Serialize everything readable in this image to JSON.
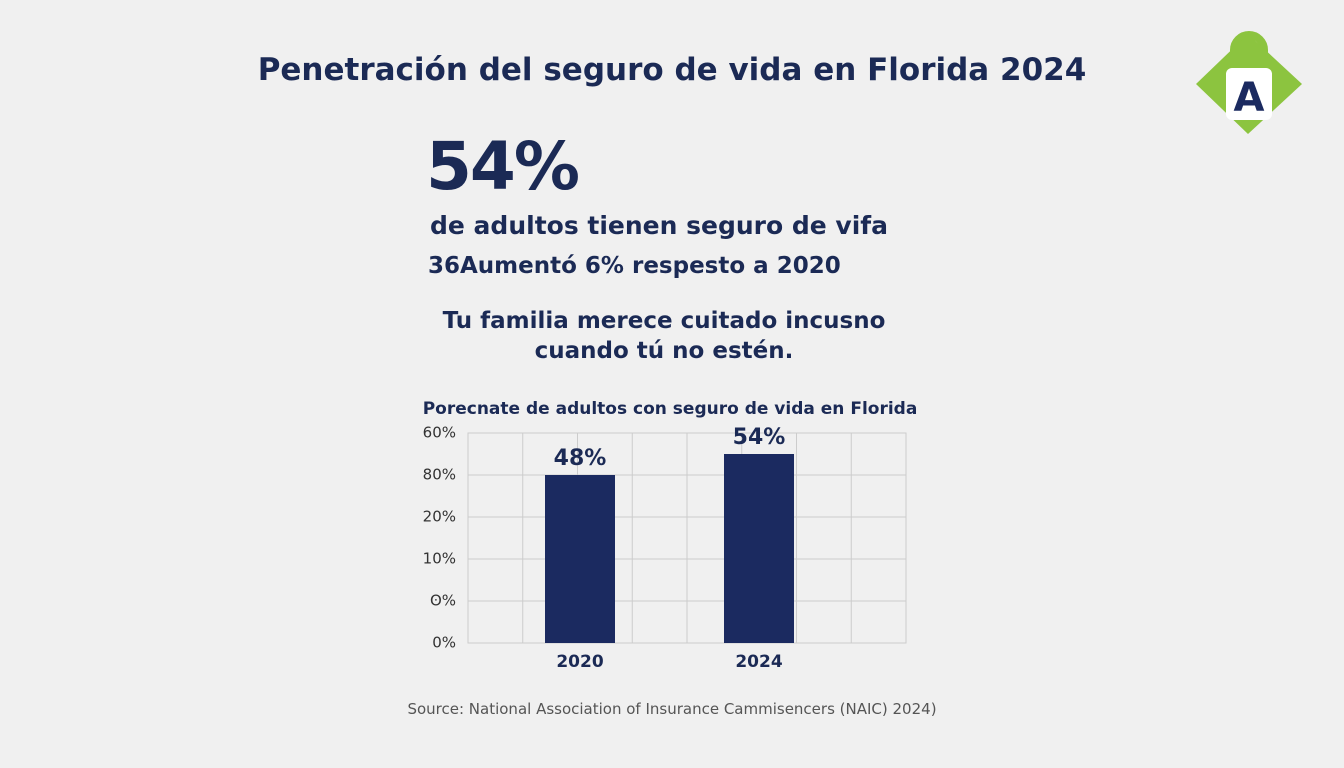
{
  "header": {
    "title": "Penetración del seguro de vida en Florida 2024",
    "logo_letter": "A"
  },
  "highlight": {
    "stat": "54%",
    "line1": "de adultos tienen seguro de vifa",
    "line2": "36Aumentó 6% respesto a 2020"
  },
  "tagline": "Tu familia merece cuitado incusno cuando tú no estén.",
  "chart_data": {
    "type": "bar",
    "title": "Porecnate de adultos con seguro de vida en Florida",
    "categories": [
      "2020",
      "2024"
    ],
    "values": [
      48,
      54
    ],
    "value_labels": [
      "48%",
      "54%"
    ],
    "color": "#1b2a60",
    "ylim": [
      0,
      60
    ],
    "ytick_labels": [
      "60%",
      "80%",
      "20%",
      "10%",
      "ʘ%",
      "0%"
    ],
    "grid": true
  },
  "source": "Source: National Association of Insurance Cammisencers (NAIC) 2024)"
}
